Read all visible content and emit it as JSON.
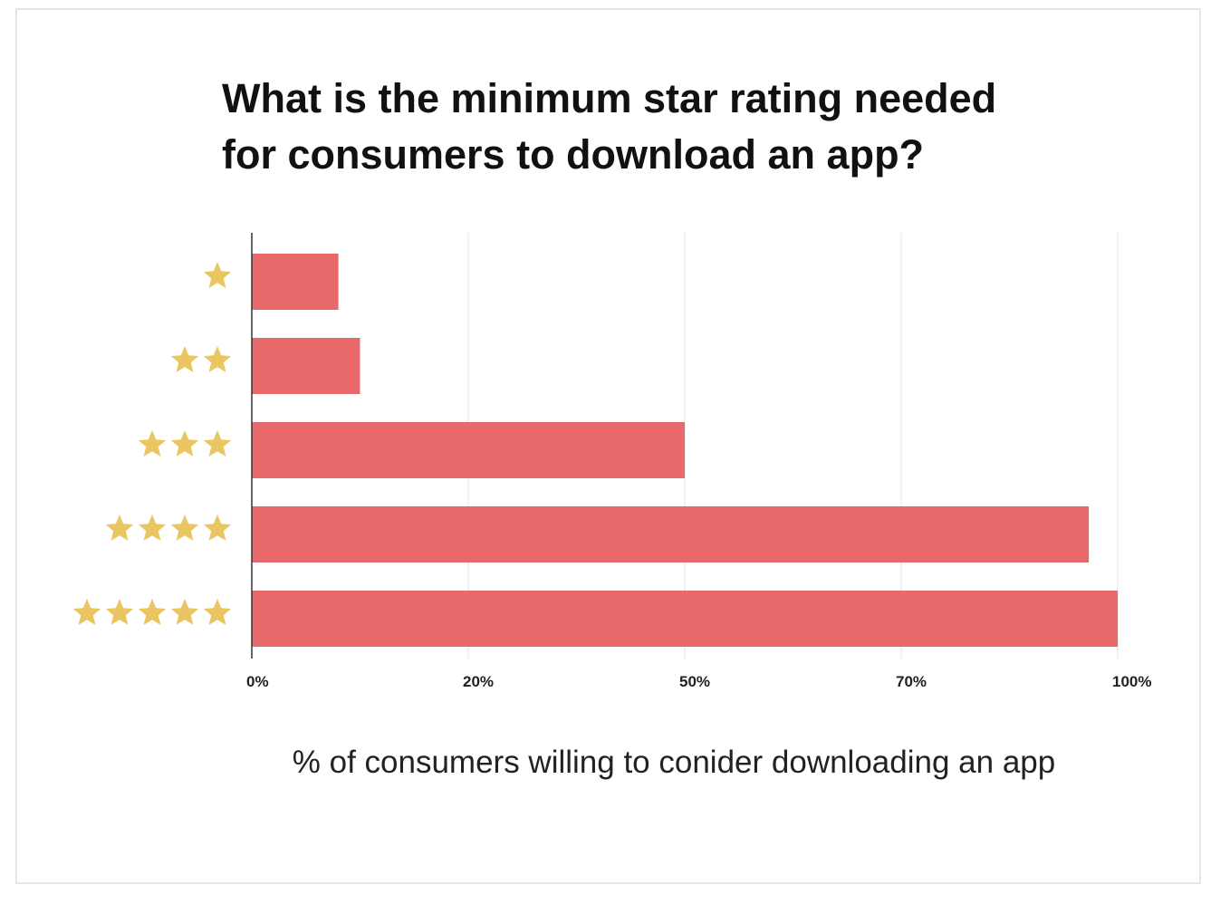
{
  "chart_data": {
    "type": "bar",
    "orientation": "horizontal",
    "title": "What is the minimum star rating needed for consumers to download an app?",
    "title_lines": [
      "What is the minimum star rating needed",
      "for consumers to download an app?"
    ],
    "categories": [
      "1 star",
      "2 stars",
      "3 stars",
      "4 stars",
      "5 stars"
    ],
    "category_star_counts": [
      1,
      2,
      3,
      4,
      5
    ],
    "values": [
      8,
      10,
      50,
      96,
      100
    ],
    "xlabel": "% of consumers willing to conider downloading an app",
    "ylabel": "",
    "x_ticks": [
      0,
      20,
      50,
      70,
      100
    ],
    "x_tick_labels": [
      "0%",
      "20%",
      "50%",
      "70%",
      "100%"
    ],
    "xlim": [
      0,
      100
    ],
    "grid": true,
    "colors": {
      "bar": "#e8696a",
      "star": "#eac663",
      "grid": "#eeeeee",
      "axis": "#333333"
    }
  }
}
